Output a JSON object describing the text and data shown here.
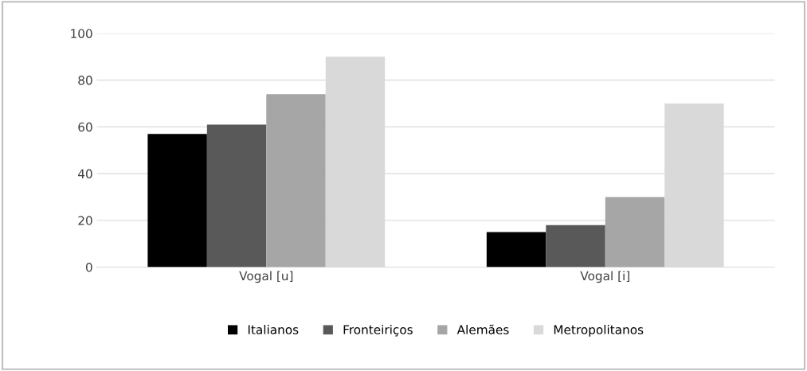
{
  "chart_data": {
    "type": "bar",
    "categories": [
      "Vogal [u]",
      "Vogal [i]"
    ],
    "series": [
      {
        "name": "Italianos",
        "color": "#000000",
        "values": [
          57,
          15
        ]
      },
      {
        "name": "Fronteiriços",
        "color": "#595959",
        "values": [
          61,
          18
        ]
      },
      {
        "name": "Alemães",
        "color": "#a6a6a6",
        "values": [
          74,
          30
        ]
      },
      {
        "name": "Metropolitanos",
        "color": "#d9d9d9",
        "values": [
          90,
          70
        ]
      }
    ],
    "ylim": [
      0,
      100
    ],
    "yticks": [
      0,
      20,
      40,
      60,
      80,
      100
    ],
    "grid": "y",
    "legend": "bottom"
  }
}
